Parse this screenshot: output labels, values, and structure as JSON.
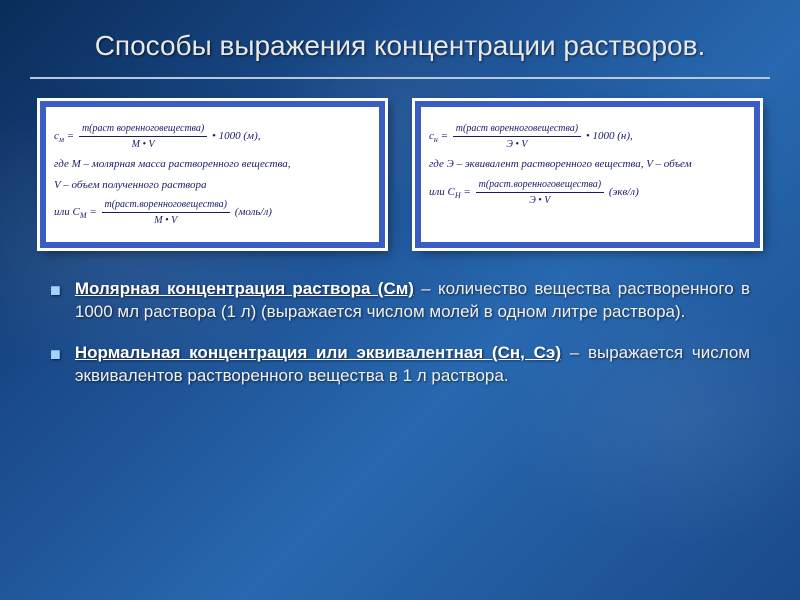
{
  "slide": {
    "title": "Способы выражения концентрации растворов.",
    "title_color": "#e8e8e8",
    "title_fontsize": 28,
    "underline_color": "#b8c8d8",
    "background_gradient": [
      "#0a2d5a",
      "#1a4a8a",
      "#2868b0",
      "#1a4a8a"
    ]
  },
  "formula_boxes": {
    "border_color": "#3a5dc4",
    "background_color": "#ffffff",
    "text_color": "#1a1a6a",
    "font_family": "Times New Roman",
    "font_style": "italic",
    "fontsize": 11,
    "left": {
      "line1_lhs": "c",
      "line1_sub": "м",
      "line1_eq": " = ",
      "line1_num": "m(раст воренноговещества)",
      "line1_den": "M • V",
      "line1_tail": " • 1000 (м),",
      "line2": "где  M – молярная масса растворенного вещества,",
      "line3": "V – объем полученного раствора",
      "line4_pre": "или  ",
      "line4_lhs": "C",
      "line4_sub": "M",
      "line4_eq": " = ",
      "line4_num": "m(раст.воренноговещества)",
      "line4_den": "M • V",
      "line4_tail": "  (моль/л)"
    },
    "right": {
      "line1_lhs": "c",
      "line1_sub": "н",
      "line1_eq": " = ",
      "line1_num": "m(раст воренноговещества)",
      "line1_den": "Э • V",
      "line1_tail": " • 1000 (н),",
      "line2": "где Э – эквивалент растворенного вещества, V – объем",
      "line3_pre": "или  ",
      "line3_lhs": "C",
      "line3_sub": "H",
      "line3_eq": " = ",
      "line3_num": "m(раст.воренноговещества)",
      "line3_den": "Э • V",
      "line3_tail": "  (экв/л)"
    }
  },
  "bullets": [
    {
      "term": "Молярная концентрация раствора (См)",
      "rest": " – количество вещества растворенного  в 1000 мл раствора (1 л)  (выражается числом молей в одном литре раствора)."
    },
    {
      "term": "Нормальная концентрация или эквивалентная (Сн, Сэ)",
      "rest": " – выражается числом эквивалентов растворенного вещества в 1 л раствора."
    }
  ],
  "bullet_style": {
    "marker_color": "#9fd4ff",
    "text_color": "#f0f0f0",
    "term_color": "#ffffff",
    "fontsize": 17
  }
}
